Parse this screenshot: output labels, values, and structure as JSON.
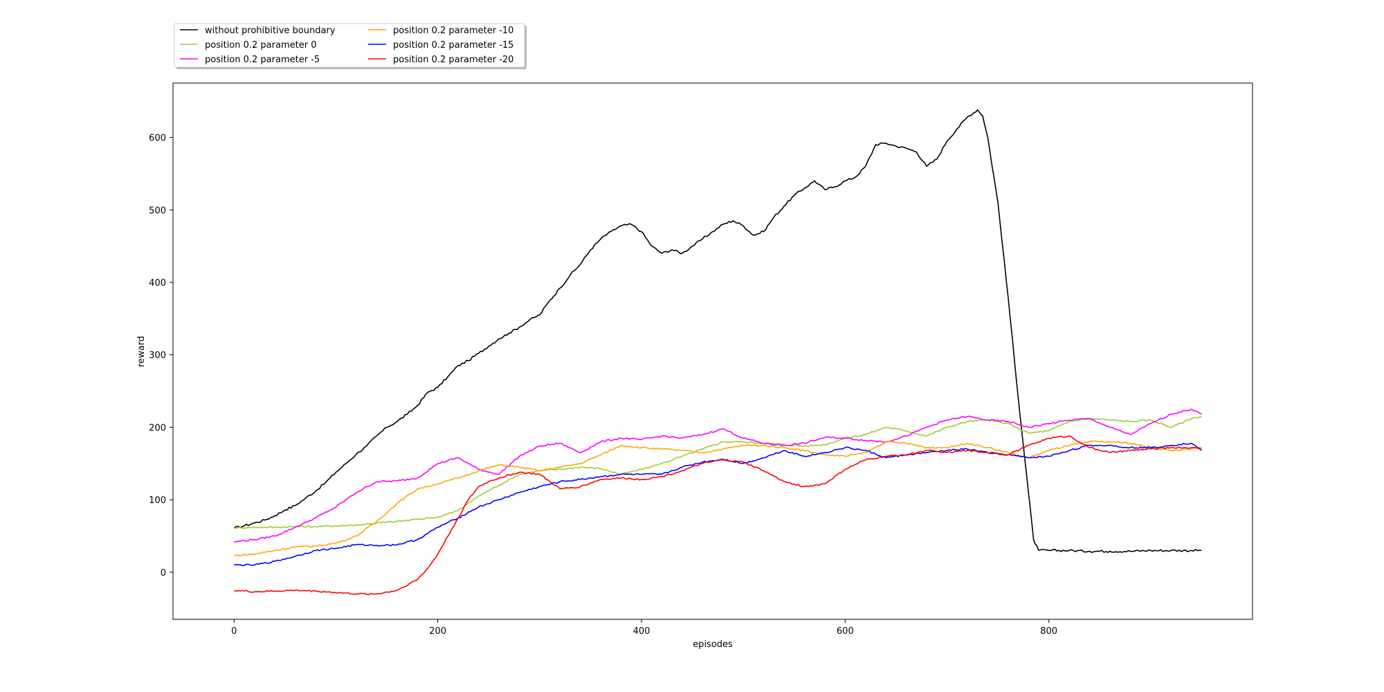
{
  "chart_data": {
    "type": "line",
    "title": "",
    "xlabel": "episodes",
    "ylabel": "reward",
    "xlim": [
      -60,
      1000
    ],
    "ylim": [
      -65,
      675
    ],
    "xticks": [
      0,
      200,
      400,
      600,
      800
    ],
    "yticks": [
      0,
      100,
      200,
      300,
      400,
      500,
      600
    ],
    "grid": false,
    "legend_position": "top-left, above plot, 2 columns",
    "series": [
      {
        "name": "without prohibitive boundary",
        "color": "#000000",
        "x": [
          0,
          10,
          20,
          30,
          40,
          50,
          60,
          70,
          80,
          90,
          100,
          110,
          120,
          130,
          140,
          150,
          160,
          170,
          180,
          190,
          200,
          210,
          220,
          230,
          240,
          250,
          260,
          270,
          280,
          290,
          300,
          310,
          320,
          330,
          340,
          350,
          360,
          370,
          380,
          390,
          400,
          410,
          420,
          430,
          440,
          450,
          460,
          470,
          480,
          490,
          500,
          510,
          520,
          530,
          540,
          550,
          560,
          570,
          580,
          590,
          600,
          610,
          620,
          630,
          640,
          650,
          660,
          670,
          680,
          690,
          700,
          710,
          720,
          730,
          735,
          740,
          750,
          760,
          770,
          780,
          785,
          790,
          800,
          820,
          840,
          860,
          880,
          900,
          920,
          940,
          950
        ],
        "y": [
          61,
          64,
          68,
          72,
          78,
          86,
          92,
          102,
          112,
          124,
          138,
          150,
          163,
          174,
          188,
          200,
          208,
          218,
          230,
          248,
          255,
          270,
          285,
          292,
          302,
          312,
          322,
          330,
          338,
          348,
          355,
          375,
          392,
          410,
          425,
          445,
          460,
          470,
          478,
          480,
          470,
          450,
          440,
          445,
          440,
          450,
          460,
          470,
          480,
          485,
          478,
          465,
          470,
          490,
          505,
          520,
          530,
          540,
          528,
          532,
          540,
          545,
          560,
          590,
          592,
          588,
          585,
          580,
          560,
          570,
          595,
          612,
          628,
          638,
          630,
          600,
          510,
          380,
          240,
          110,
          45,
          30,
          30,
          30,
          29,
          29,
          29,
          30,
          30,
          30,
          30
        ]
      },
      {
        "name": "position 0.2 parameter 0",
        "color": "#9acd32",
        "x": [
          0,
          20,
          40,
          60,
          80,
          100,
          120,
          140,
          160,
          180,
          200,
          220,
          240,
          260,
          280,
          300,
          320,
          340,
          360,
          380,
          400,
          420,
          440,
          460,
          480,
          500,
          520,
          540,
          560,
          580,
          600,
          620,
          640,
          660,
          680,
          700,
          720,
          740,
          760,
          780,
          800,
          820,
          840,
          860,
          880,
          900,
          920,
          940,
          950
        ],
        "y": [
          61,
          62,
          62,
          63,
          63,
          64,
          65,
          68,
          70,
          73,
          76,
          85,
          105,
          120,
          135,
          140,
          142,
          145,
          143,
          135,
          142,
          150,
          160,
          170,
          180,
          180,
          178,
          176,
          174,
          176,
          185,
          190,
          200,
          195,
          188,
          200,
          208,
          210,
          205,
          192,
          195,
          208,
          212,
          210,
          208,
          210,
          200,
          212,
          215
        ]
      },
      {
        "name": "position 0.2 parameter -5",
        "color": "#ff00ff",
        "x": [
          0,
          20,
          40,
          60,
          80,
          100,
          120,
          140,
          160,
          180,
          200,
          220,
          240,
          260,
          280,
          300,
          320,
          340,
          360,
          380,
          400,
          420,
          440,
          460,
          480,
          500,
          520,
          540,
          560,
          580,
          600,
          620,
          640,
          660,
          680,
          700,
          720,
          740,
          760,
          780,
          800,
          820,
          840,
          860,
          880,
          900,
          920,
          940,
          950
        ],
        "y": [
          42,
          45,
          50,
          62,
          75,
          90,
          110,
          125,
          126,
          130,
          150,
          158,
          142,
          135,
          160,
          174,
          178,
          165,
          180,
          185,
          183,
          188,
          185,
          190,
          198,
          185,
          178,
          175,
          178,
          186,
          185,
          182,
          180,
          188,
          200,
          210,
          215,
          210,
          208,
          200,
          205,
          210,
          212,
          200,
          190,
          205,
          218,
          225,
          218
        ]
      },
      {
        "name": "position 0.2 parameter -10",
        "color": "#ffa500",
        "x": [
          0,
          20,
          40,
          60,
          80,
          100,
          120,
          140,
          160,
          180,
          200,
          220,
          240,
          260,
          280,
          300,
          320,
          340,
          360,
          380,
          400,
          420,
          440,
          460,
          480,
          500,
          520,
          540,
          560,
          580,
          600,
          620,
          640,
          660,
          680,
          700,
          720,
          740,
          760,
          780,
          800,
          820,
          840,
          860,
          880,
          900,
          920,
          940,
          950
        ],
        "y": [
          23,
          25,
          30,
          35,
          36,
          40,
          50,
          70,
          95,
          115,
          122,
          130,
          140,
          148,
          145,
          140,
          145,
          150,
          162,
          175,
          172,
          170,
          168,
          165,
          170,
          175,
          175,
          172,
          168,
          162,
          160,
          165,
          180,
          178,
          172,
          172,
          178,
          172,
          165,
          158,
          168,
          175,
          180,
          180,
          178,
          172,
          168,
          170,
          172
        ]
      },
      {
        "name": "position 0.2 parameter -15",
        "color": "#0000ff",
        "x": [
          0,
          20,
          40,
          60,
          80,
          100,
          120,
          140,
          160,
          180,
          200,
          220,
          240,
          260,
          280,
          300,
          320,
          340,
          360,
          380,
          400,
          420,
          440,
          460,
          480,
          500,
          520,
          540,
          560,
          580,
          600,
          620,
          640,
          660,
          680,
          700,
          720,
          740,
          760,
          780,
          800,
          820,
          840,
          860,
          880,
          900,
          920,
          940,
          950
        ],
        "y": [
          10,
          10,
          15,
          22,
          30,
          33,
          38,
          37,
          38,
          45,
          62,
          75,
          90,
          100,
          110,
          118,
          125,
          128,
          132,
          135,
          135,
          135,
          145,
          152,
          156,
          150,
          158,
          168,
          160,
          165,
          172,
          168,
          158,
          162,
          165,
          168,
          170,
          165,
          162,
          158,
          160,
          168,
          175,
          175,
          172,
          172,
          175,
          178,
          168
        ]
      },
      {
        "name": "position 0.2 parameter -20",
        "color": "#ff0000",
        "x": [
          0,
          20,
          40,
          60,
          80,
          100,
          120,
          140,
          160,
          180,
          190,
          200,
          210,
          220,
          230,
          240,
          250,
          260,
          280,
          300,
          320,
          340,
          360,
          380,
          400,
          420,
          440,
          460,
          480,
          500,
          520,
          540,
          560,
          580,
          600,
          620,
          640,
          660,
          680,
          700,
          720,
          740,
          760,
          780,
          800,
          820,
          840,
          860,
          880,
          900,
          920,
          940,
          950
        ],
        "y": [
          -25,
          -27,
          -26,
          -25,
          -26,
          -28,
          -30,
          -30,
          -25,
          -10,
          5,
          25,
          50,
          75,
          100,
          118,
          125,
          130,
          138,
          135,
          115,
          118,
          128,
          130,
          128,
          132,
          140,
          150,
          155,
          152,
          140,
          125,
          118,
          122,
          142,
          155,
          160,
          162,
          168,
          165,
          168,
          165,
          162,
          175,
          185,
          188,
          172,
          165,
          168,
          170,
          172,
          172,
          170
        ]
      }
    ]
  }
}
